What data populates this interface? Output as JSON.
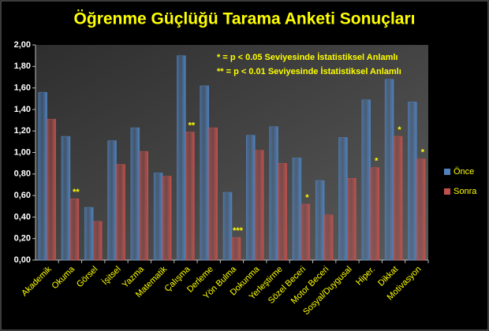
{
  "chart_data": {
    "type": "bar",
    "title": "Öğrenme Güçlüğü Tarama Anketi Sonuçları",
    "notes": [
      "*   = p < 0.05 Seviyesinde İstatistiksel Anlamlı",
      "** = p < 0.01 Seviyesinde İstatistiksel Anlamlı"
    ],
    "categories": [
      "Akademik",
      "Okuma",
      "Görsel",
      "İşitsel",
      "Yazma",
      "Matematik",
      "Çalışma",
      "Derleme",
      "Yön Bulma",
      "Dokunma",
      "Yerleştirme",
      "Sözel Beceri",
      "Motor Beceri",
      "Sosyal/Duygusal",
      "Hiper.",
      "Dikkat",
      "Motivasyon"
    ],
    "series": [
      {
        "name": "Önce",
        "color": "#4f81bd",
        "values": [
          1.56,
          1.15,
          0.49,
          1.11,
          1.23,
          0.81,
          1.9,
          1.62,
          0.63,
          1.16,
          1.24,
          0.95,
          0.74,
          1.14,
          1.49,
          1.68,
          1.47
        ]
      },
      {
        "name": "Sonra",
        "color": "#c0504d",
        "values": [
          1.31,
          0.57,
          0.36,
          0.89,
          1.01,
          0.78,
          1.19,
          1.23,
          0.21,
          1.02,
          0.9,
          0.52,
          0.42,
          0.76,
          0.86,
          1.15,
          0.94
        ]
      }
    ],
    "significance": [
      null,
      "**",
      null,
      null,
      null,
      null,
      "**",
      null,
      "***",
      null,
      null,
      "*",
      null,
      null,
      "*",
      "*",
      "*"
    ],
    "ylim": [
      0,
      2
    ],
    "yticks": [
      {
        "value": 0,
        "label": "0,00"
      },
      {
        "value": 0.2,
        "label": "0,20"
      },
      {
        "value": 0.4,
        "label": "0,40"
      },
      {
        "value": 0.6,
        "label": "0,60"
      },
      {
        "value": 0.8,
        "label": "0,80"
      },
      {
        "value": 1.0,
        "label": "1,00"
      },
      {
        "value": 1.2,
        "label": "1,20"
      },
      {
        "value": 1.4,
        "label": "1,40"
      },
      {
        "value": 1.6,
        "label": "1,60"
      },
      {
        "value": 1.8,
        "label": "1,80"
      },
      {
        "value": 2.0,
        "label": "2,00"
      }
    ],
    "grid": false
  }
}
